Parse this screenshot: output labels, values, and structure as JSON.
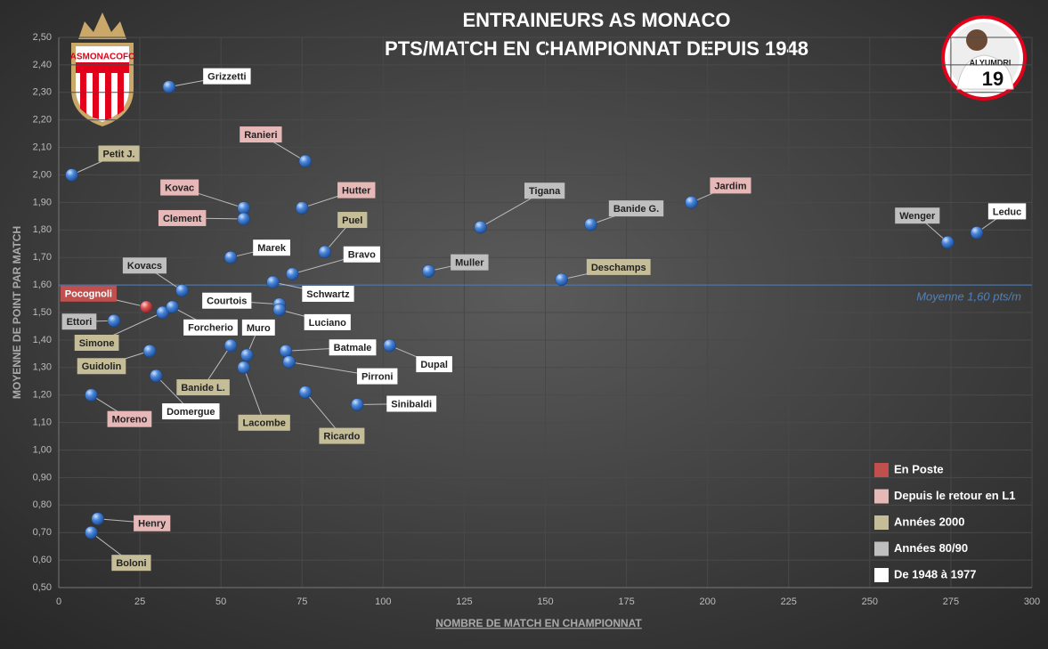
{
  "chart_data": {
    "type": "scatter",
    "title": [
      "ENTRAINEURS AS MONACO",
      "PTS/MATCH EN CHAMPIONNAT DEPUIS 1948"
    ],
    "xlabel": "NOMBRE DE MATCH EN CHAMPIONNAT",
    "ylabel": "MOYENNE DE POINT PAR MATCH",
    "logo_text": "ASMONACOFC",
    "badge": {
      "name": "ALYUMDRI",
      "number": "19"
    },
    "xlim": [
      0,
      300
    ],
    "xticks": [
      0,
      25,
      50,
      75,
      100,
      125,
      150,
      175,
      200,
      225,
      250,
      275,
      300
    ],
    "ylim": [
      0.5,
      2.5
    ],
    "yticks": [
      {
        "value": 0.5,
        "label": "0,50"
      },
      {
        "value": 0.6,
        "label": "0,60"
      },
      {
        "value": 0.7,
        "label": "0,70"
      },
      {
        "value": 0.8,
        "label": "0,80"
      },
      {
        "value": 0.9,
        "label": "0,90"
      },
      {
        "value": 1.0,
        "label": "1,00"
      },
      {
        "value": 1.1,
        "label": "1,10"
      },
      {
        "value": 1.2,
        "label": "1,20"
      },
      {
        "value": 1.3,
        "label": "1,30"
      },
      {
        "value": 1.4,
        "label": "1,40"
      },
      {
        "value": 1.5,
        "label": "1,50"
      },
      {
        "value": 1.6,
        "label": "1,60"
      },
      {
        "value": 1.7,
        "label": "1,70"
      },
      {
        "value": 1.8,
        "label": "1,80"
      },
      {
        "value": 1.9,
        "label": "1,90"
      },
      {
        "value": 2.0,
        "label": "2,00"
      },
      {
        "value": 2.1,
        "label": "2,10"
      },
      {
        "value": 2.2,
        "label": "2,20"
      },
      {
        "value": 2.3,
        "label": "2,30"
      },
      {
        "value": 2.4,
        "label": "2,40"
      },
      {
        "value": 2.5,
        "label": "2,50"
      }
    ],
    "grid": true,
    "marker_color": "#4a86d8",
    "mean_line": {
      "value": 1.6,
      "label": "Moyenne 1,60 pts/m",
      "color": "#4f81bd"
    },
    "series": [
      {
        "name": "En Poste",
        "color": "#c0504d",
        "marker_color": "#d9534f",
        "labels": [
          "Pocognoli"
        ],
        "x": [
          27
        ],
        "values": [
          1.52
        ]
      },
      {
        "name": "Depuis le retour en L1",
        "color": "#e6b9b8",
        "labels": [
          "Ranieri",
          "Kovac",
          "Clement",
          "Hutter",
          "Jardim",
          "Moreno",
          "Henry"
        ],
        "x": [
          76,
          57,
          57,
          75,
          195,
          10,
          12
        ],
        "values": [
          2.05,
          1.88,
          1.84,
          1.88,
          1.9,
          1.2,
          0.75
        ]
      },
      {
        "name": "Années 2000",
        "color": "#c4bd97",
        "labels": [
          "Petit J.",
          "Puel",
          "Deschamps",
          "Simone",
          "Banide L.",
          "Guidolin",
          "Lacombe",
          "Ricardo",
          "Boloni"
        ],
        "x": [
          4,
          82,
          155,
          32,
          53,
          28,
          57,
          76,
          10
        ],
        "values": [
          2.0,
          1.72,
          1.62,
          1.5,
          1.38,
          1.36,
          1.3,
          1.21,
          0.7
        ]
      },
      {
        "name": "Années 80/90",
        "color": "#bfbfbf",
        "labels": [
          "Tigana",
          "Banide G.",
          "Wenger",
          "Muller",
          "Kovacs",
          "Ettori"
        ],
        "x": [
          130,
          164,
          274,
          114,
          38,
          17
        ],
        "values": [
          1.81,
          1.82,
          1.755,
          1.65,
          1.58,
          1.47
        ]
      },
      {
        "name": "De 1948 à 1977",
        "color": "#ffffff",
        "labels": [
          "Grizzetti",
          "Leduc",
          "Bravo",
          "Marek",
          "Schwartz",
          "Courtois",
          "Luciano",
          "Forcherio",
          "Muro",
          "Batmale",
          "Pirroni",
          "Dupal",
          "Domergue",
          "Sinibaldi"
        ],
        "x": [
          34,
          283,
          72,
          53,
          66,
          68,
          68,
          35,
          58,
          70,
          71,
          102,
          30,
          92
        ],
        "values": [
          2.32,
          1.79,
          1.64,
          1.7,
          1.61,
          1.53,
          1.51,
          1.52,
          1.345,
          1.36,
          1.32,
          1.38,
          1.27,
          1.165
        ]
      }
    ]
  }
}
